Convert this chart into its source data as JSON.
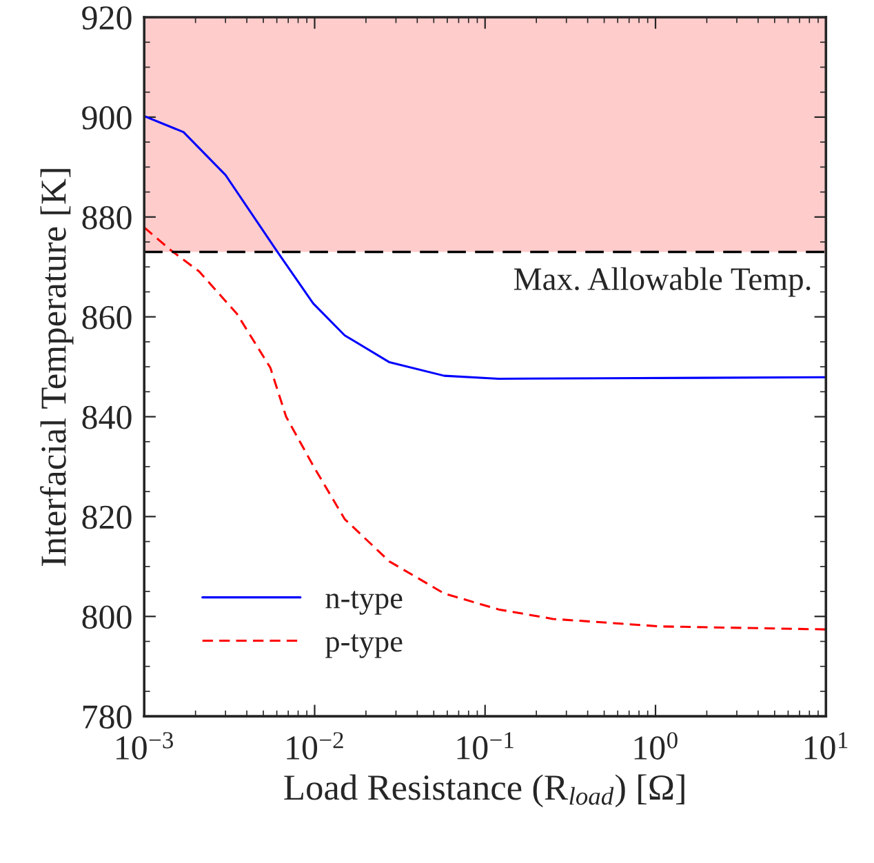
{
  "chart_data": {
    "type": "line",
    "xlabel": "Load Resistance (R$_{load}$) [Ω]",
    "ylabel": "Interfacial Temperature [K]",
    "log": "x",
    "xlim": [
      0.001,
      10
    ],
    "xticks": [
      {
        "value": 0.001,
        "label": "10$^{−3}$"
      },
      {
        "value": 0.01,
        "label": "10$^{−2}$"
      },
      {
        "value": 0.1,
        "label": "10$^{−1}$"
      },
      {
        "value": 1,
        "label": "10$^{0}$"
      },
      {
        "value": 10,
        "label": "10$^{1}$"
      }
    ],
    "ylim": [
      780,
      920
    ],
    "yticks": [
      780,
      800,
      820,
      840,
      860,
      880,
      900,
      920
    ],
    "legend": "bottom left",
    "grid": false,
    "bands": [
      {
        "axis": "y",
        "from": 873,
        "to": 920,
        "color": "#ffcccc"
      }
    ],
    "ref_lines": [
      {
        "axis": "y",
        "value": 873,
        "label": "Max. Allowable Temp.",
        "color": "#000000",
        "line_style": "dashed"
      }
    ],
    "series": [
      {
        "name": "n-type",
        "color": "#0000ff",
        "line_style": "solid",
        "x": [
          0.001,
          0.0017,
          0.003,
          0.006,
          0.0098,
          0.015,
          0.0275,
          0.0575,
          0.12,
          0.51,
          10
        ],
        "values": [
          900.2,
          897,
          888.4,
          873.2,
          862.7,
          856.3,
          850.9,
          848.2,
          847.6,
          847.7,
          847.9
        ]
      },
      {
        "name": "p-type",
        "color": "#ff0000",
        "line_style": "dashed",
        "x": [
          0.001,
          0.00145,
          0.0021,
          0.0035,
          0.0055,
          0.0068,
          0.0098,
          0.015,
          0.0275,
          0.0575,
          0.12,
          0.25,
          1.07,
          10
        ],
        "values": [
          877.9,
          873.2,
          869.1,
          860.6,
          849.8,
          840,
          830.2,
          819.5,
          811,
          804.6,
          801.4,
          799.5,
          798,
          797.4
        ]
      }
    ]
  }
}
